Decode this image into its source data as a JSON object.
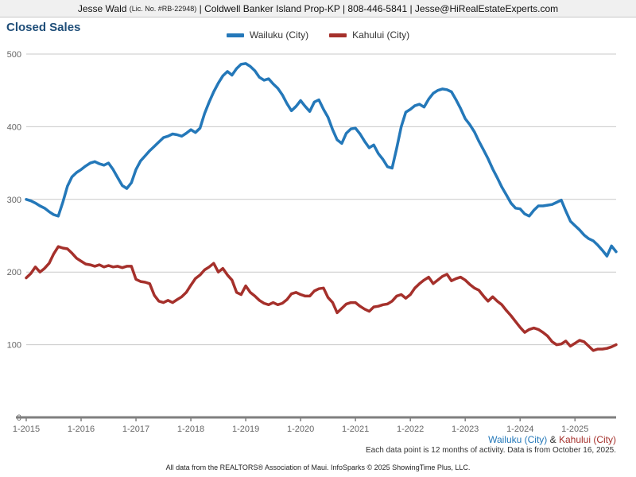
{
  "header": {
    "agent": "Jesse Wald ",
    "license": "(Lic. No. #RB-22948)",
    "details": " | Coldwell Banker Island Prop-KP | 808-446-5841 | Jesse@HiRealEstateExperts.com"
  },
  "title": "Closed Sales",
  "legend": [
    {
      "label": "Wailuku (City)",
      "color": "#2478B9"
    },
    {
      "label": "Kahului (City)",
      "color": "#A5302B"
    }
  ],
  "footer": {
    "series_wailuku": "Wailuku (City)",
    "ampersand": " & ",
    "series_kahului": "Kahului (City)",
    "note": "Each data point is 12 months of activity. Data is from October 16, 2025.",
    "attribution": "All data from the REALTORS® Association of Maui. InfoSparks © 2025 ShowingTime Plus, LLC."
  },
  "chart_data": {
    "type": "line",
    "title": "Closed Sales",
    "x_unit": "month",
    "x_start": "2015-01",
    "x_end": "2025-10",
    "x_tick_labels": [
      "1-2015",
      "1-2016",
      "1-2017",
      "1-2018",
      "1-2019",
      "1-2020",
      "1-2021",
      "1-2022",
      "1-2023",
      "1-2024",
      "1-2025"
    ],
    "ylim": [
      0,
      500
    ],
    "y_ticks": [
      0,
      100,
      200,
      300,
      400,
      500
    ],
    "grid": "horizontal",
    "legend_position": "top-center",
    "colors": {
      "grid": "#C9C9C9",
      "axis": "#7F7F7F",
      "tick_text": "#666666"
    },
    "series": [
      {
        "name": "Wailuku (City)",
        "color": "#2478B9",
        "values": [
          300,
          298,
          295,
          291,
          288,
          283,
          279,
          277,
          296,
          318,
          331,
          337,
          341,
          346,
          350,
          352,
          349,
          347,
          350,
          341,
          330,
          319,
          315,
          323,
          341,
          353,
          360,
          367,
          373,
          379,
          385,
          387,
          390,
          389,
          387,
          391,
          396,
          392,
          398,
          418,
          434,
          448,
          460,
          470,
          476,
          471,
          480,
          486,
          487,
          483,
          477,
          468,
          464,
          466,
          459,
          453,
          444,
          432,
          422,
          428,
          436,
          428,
          421,
          434,
          437,
          424,
          413,
          396,
          382,
          377,
          391,
          397,
          398,
          390,
          380,
          371,
          375,
          363,
          355,
          345,
          343,
          370,
          400,
          420,
          424,
          429,
          431,
          427,
          438,
          446,
          450,
          452,
          451,
          448,
          437,
          425,
          411,
          403,
          393,
          380,
          368,
          356,
          342,
          330,
          317,
          306,
          295,
          288,
          287,
          280,
          277,
          285,
          291,
          291,
          292,
          293,
          296,
          299,
          284,
          270,
          264,
          258,
          251,
          246,
          243,
          237,
          230,
          222,
          236,
          228
        ]
      },
      {
        "name": "Kahului (City)",
        "color": "#A5302B",
        "values": [
          192,
          198,
          207,
          200,
          205,
          212,
          225,
          235,
          233,
          232,
          226,
          219,
          215,
          211,
          210,
          208,
          210,
          207,
          209,
          207,
          208,
          206,
          208,
          208,
          190,
          187,
          186,
          184,
          168,
          160,
          158,
          161,
          158,
          162,
          166,
          172,
          182,
          191,
          196,
          203,
          207,
          212,
          200,
          205,
          196,
          189,
          172,
          169,
          181,
          172,
          167,
          161,
          157,
          155,
          158,
          155,
          157,
          162,
          170,
          172,
          169,
          167,
          167,
          174,
          177,
          178,
          165,
          158,
          144,
          150,
          156,
          158,
          158,
          153,
          149,
          146,
          152,
          153,
          155,
          156,
          160,
          167,
          169,
          164,
          169,
          178,
          184,
          189,
          193,
          184,
          189,
          194,
          197,
          188,
          191,
          193,
          189,
          183,
          178,
          175,
          167,
          160,
          166,
          160,
          155,
          147,
          140,
          132,
          124,
          117,
          121,
          123,
          121,
          117,
          112,
          104,
          100,
          101,
          105,
          98,
          102,
          106,
          104,
          98,
          92,
          94,
          94,
          95,
          97,
          100
        ]
      }
    ]
  }
}
